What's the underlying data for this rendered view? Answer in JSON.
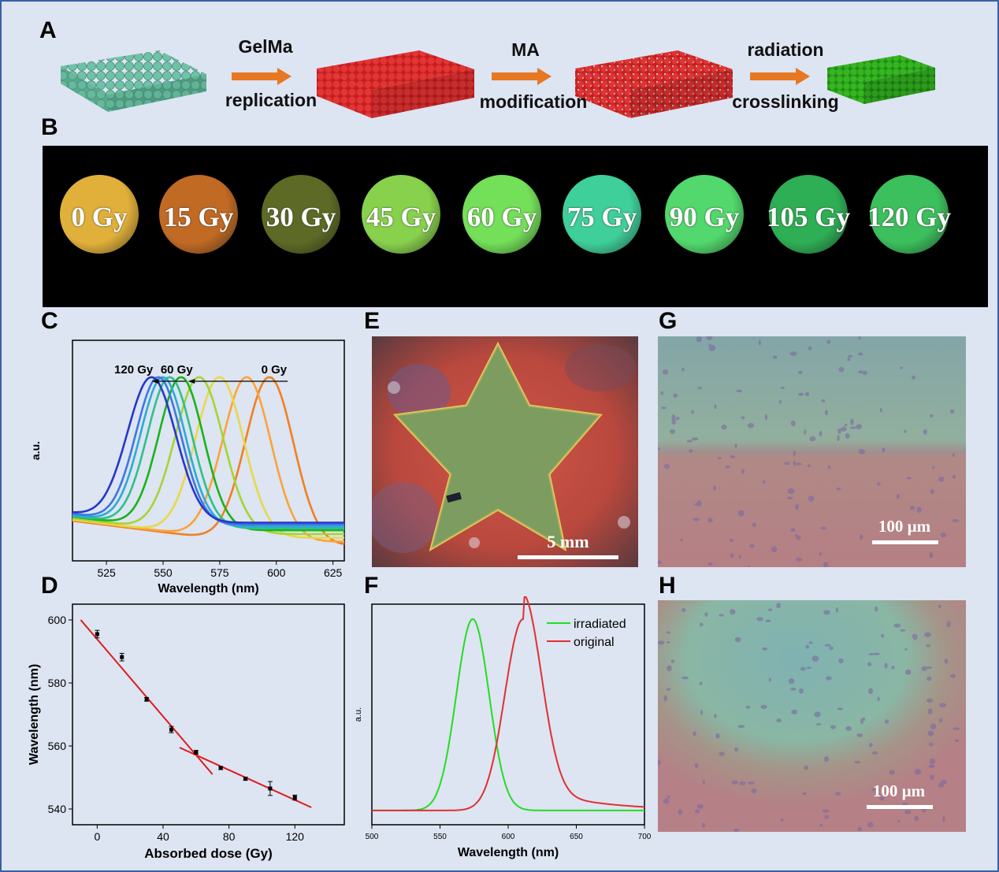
{
  "panels": {
    "a": "A",
    "b": "B",
    "c": "C",
    "d": "D",
    "e": "E",
    "f": "F",
    "g": "G",
    "h": "H"
  },
  "schematic": {
    "steps": [
      {
        "top": "GelMa",
        "bottom": "replication"
      },
      {
        "top": "MA",
        "bottom": "modification"
      },
      {
        "top": "radiation",
        "bottom": "crosslinking"
      }
    ],
    "colors": {
      "template": "#6fc2a6",
      "gelma": "#d62626",
      "modified": "#cc2a2a",
      "crosslinked": "#33b01e",
      "arrow": "#e87722"
    }
  },
  "doses": [
    {
      "label": "0 Gy",
      "color": "#e0b03a"
    },
    {
      "label": "15 Gy",
      "color": "#c06a24"
    },
    {
      "label": "30 Gy",
      "color": "#5d6a26"
    },
    {
      "label": "45 Gy",
      "color": "#88d14c"
    },
    {
      "label": "60 Gy",
      "color": "#74df58"
    },
    {
      "label": "75 Gy",
      "color": "#3fcf9a"
    },
    {
      "label": "90 Gy",
      "color": "#52d86c"
    },
    {
      "label": "105 Gy",
      "color": "#2eae55"
    },
    {
      "label": "120 Gy",
      "color": "#3cbf5d"
    }
  ],
  "panel_e": {
    "scale": "5 mm"
  },
  "panel_g": {
    "scale": "100 µm"
  },
  "panel_h": {
    "scale": "100 µm"
  },
  "chart_data": [
    {
      "type": "line",
      "xlabel": "Wavelength (nm)",
      "ylabel": "a.u.",
      "xlim": [
        510,
        630
      ],
      "xticks": [
        525,
        550,
        575,
        600,
        625
      ],
      "annotations": [
        "120 Gy",
        "60 Gy",
        "0 Gy"
      ],
      "series": [
        {
          "color": "#f0801e",
          "peak": 597,
          "width": 15,
          "base": 0.04
        },
        {
          "color": "#fba33a",
          "peak": 587,
          "width": 15,
          "base": 0.06
        },
        {
          "color": "#e8d84a",
          "peak": 575,
          "width": 15,
          "base": 0.08
        },
        {
          "color": "#a6d431",
          "peak": 566,
          "width": 15,
          "base": 0.1
        },
        {
          "color": "#19b31a",
          "peak": 558,
          "width": 14,
          "base": 0.12
        },
        {
          "color": "#2ec08a",
          "peak": 553,
          "width": 14,
          "base": 0.13
        },
        {
          "color": "#2aaad9",
          "peak": 550,
          "width": 14,
          "base": 0.14
        },
        {
          "color": "#3e77e0",
          "peak": 548,
          "width": 14,
          "base": 0.15
        },
        {
          "color": "#2637c9",
          "peak": 545,
          "width": 15,
          "base": 0.16
        }
      ]
    },
    {
      "type": "scatter",
      "xlabel": "Absorbed dose (Gy)",
      "ylabel": "Wavelength (nm)",
      "xlim": [
        -15,
        150
      ],
      "ylim": [
        535,
        605
      ],
      "xticks": [
        0,
        40,
        80,
        120
      ],
      "yticks": [
        540,
        560,
        580,
        600
      ],
      "x": [
        0,
        15,
        30,
        45,
        60,
        75,
        90,
        105,
        120
      ],
      "y": [
        595.5,
        588.2,
        574.8,
        565.2,
        558.0,
        553.0,
        549.6,
        546.5,
        543.6
      ],
      "yerr": [
        1.2,
        1.2,
        0.6,
        1.0,
        0.6,
        0.5,
        0.5,
        2.2,
        0.8
      ],
      "fits": [
        {
          "x": [
            -10,
            70
          ],
          "y": [
            600,
            551
          ]
        },
        {
          "x": [
            50,
            130
          ],
          "y": [
            559.5,
            540.5
          ]
        }
      ]
    },
    {
      "type": "line",
      "xlabel": "Wavelength (nm)",
      "ylabel": "a.u.",
      "xlim": [
        500,
        700
      ],
      "xticks": [
        500,
        550,
        600,
        650,
        700
      ],
      "series": [
        {
          "name": "irradiated",
          "color": "#22dd22"
        },
        {
          "name": "original",
          "color": "#e03030"
        }
      ]
    }
  ]
}
